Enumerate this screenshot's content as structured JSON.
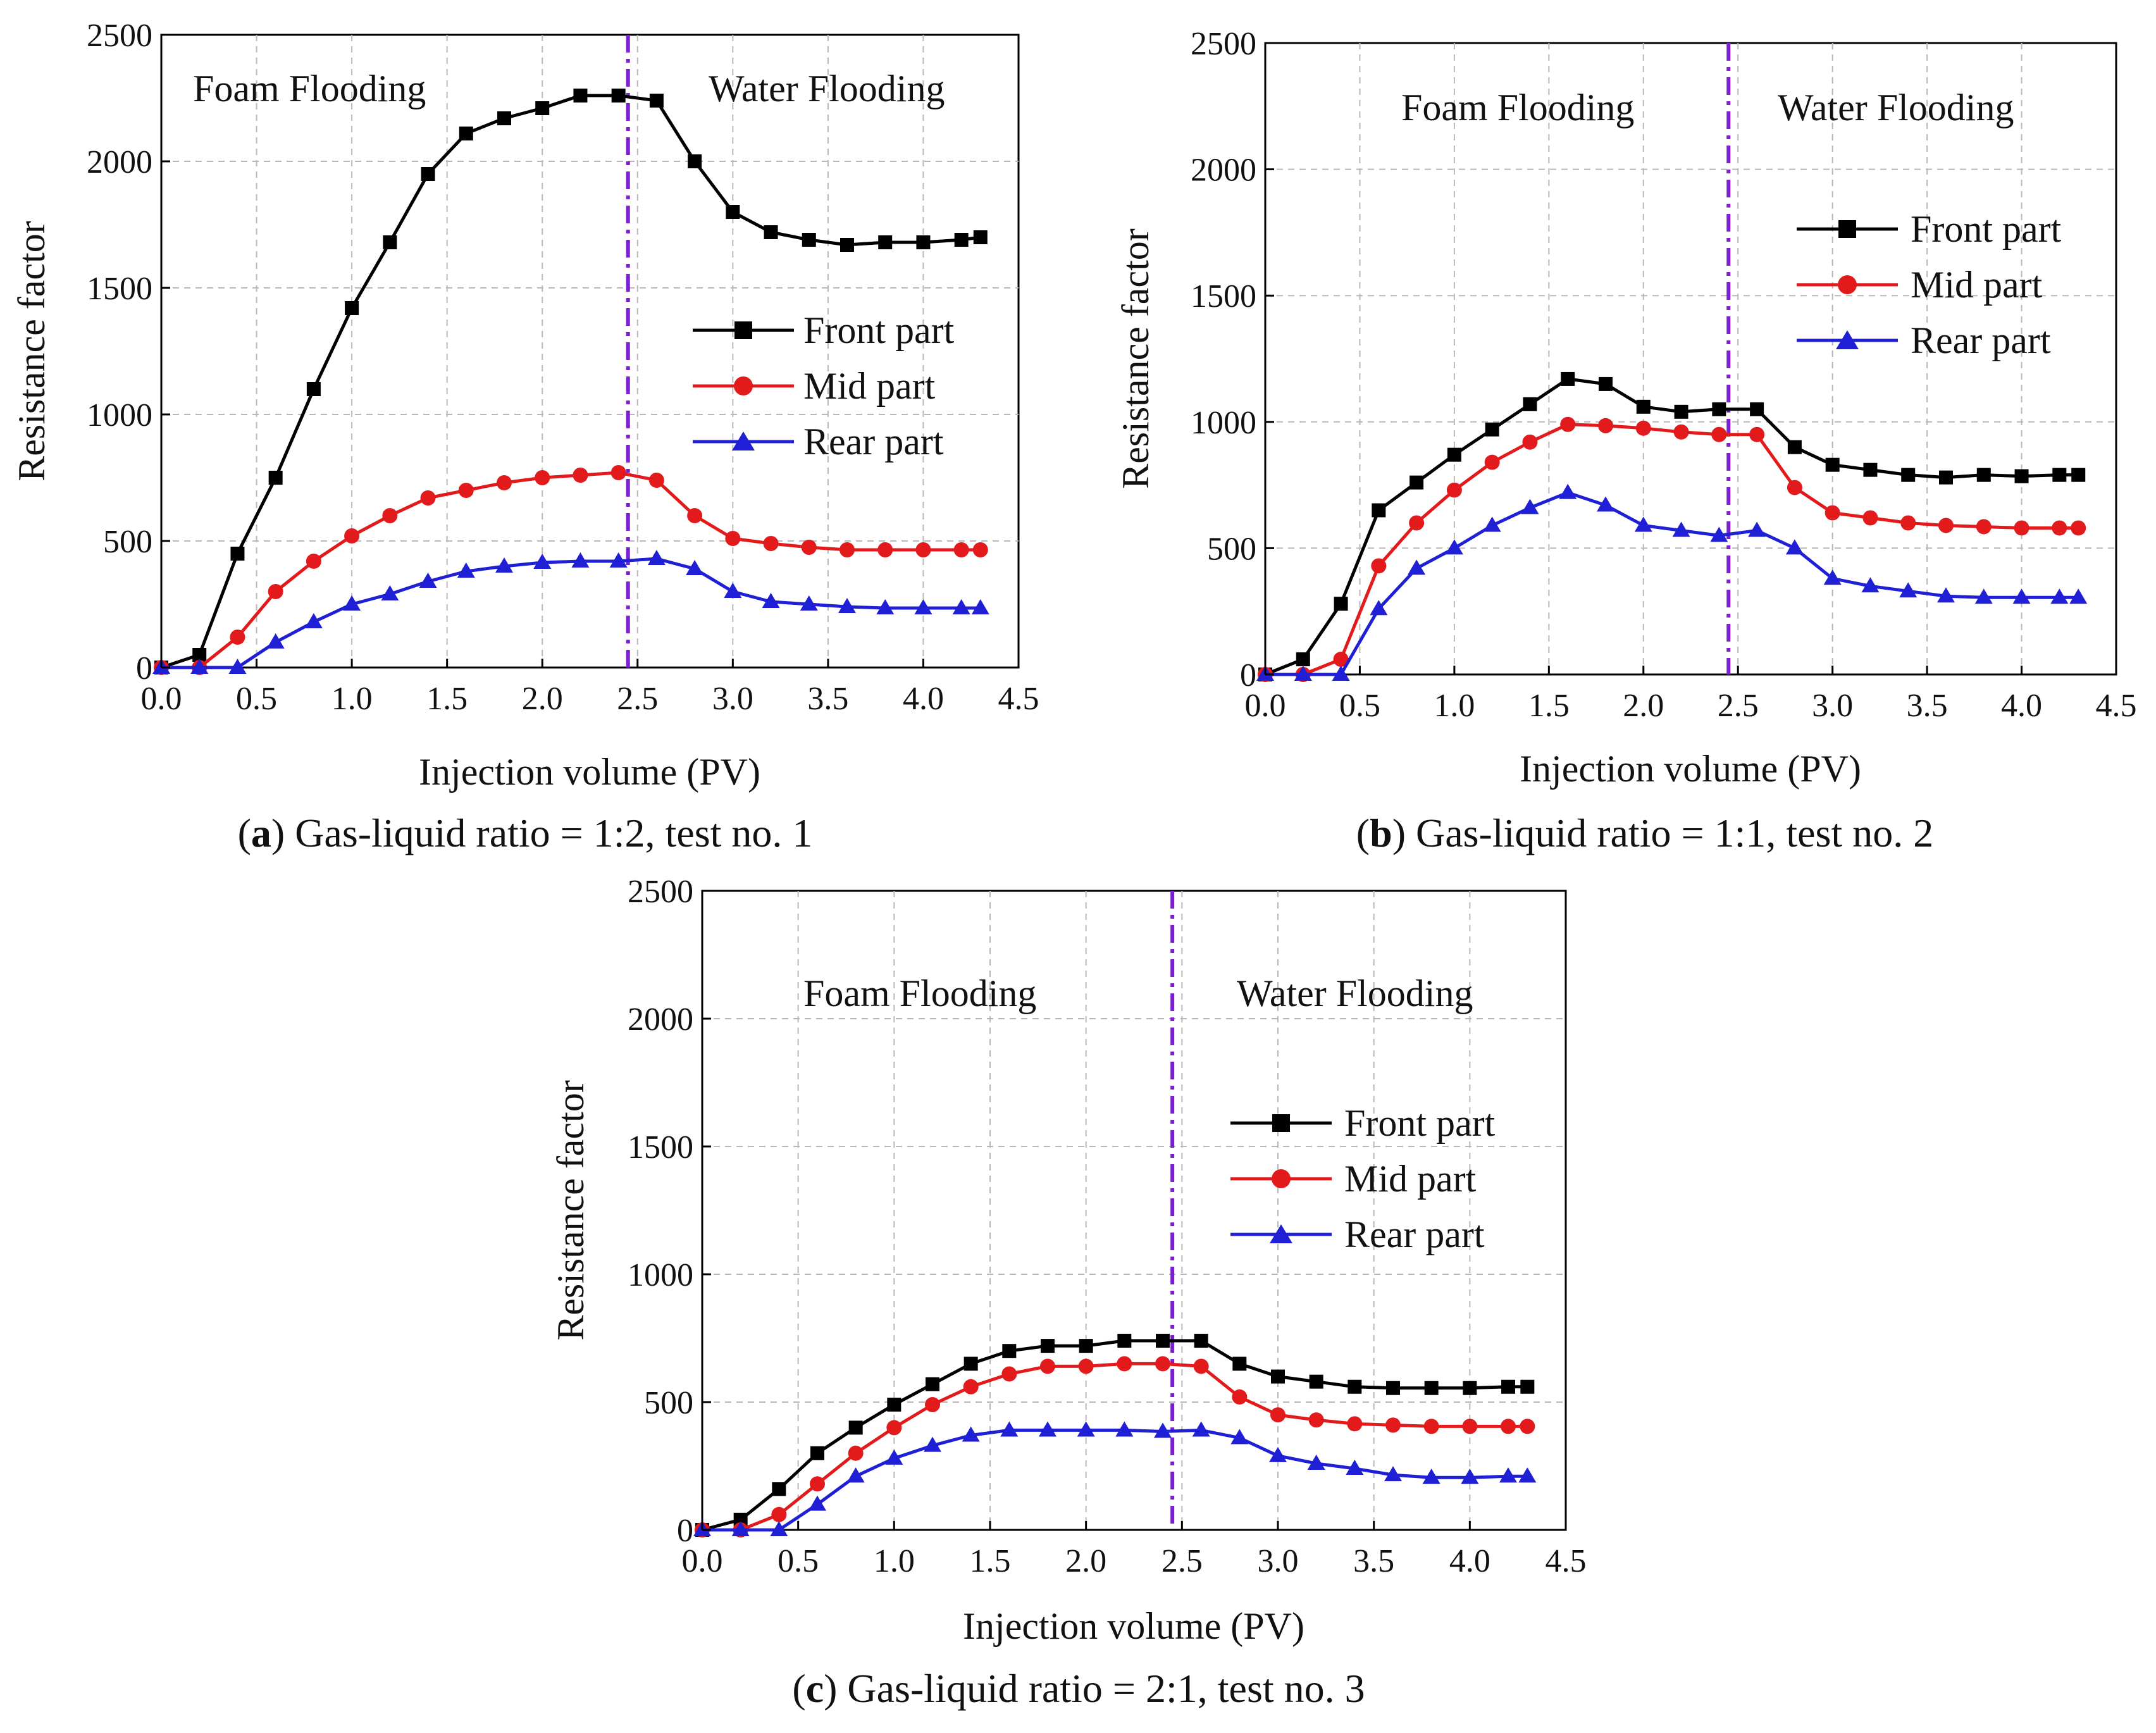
{
  "figure": {
    "captions": [
      {
        "letter": "a",
        "text": " Gas-liquid ratio = 1:2, test no. 1"
      },
      {
        "letter": "b",
        "text": " Gas-liquid ratio = 1:1, test no. 2"
      },
      {
        "letter": "c",
        "text": " Gas-liquid ratio = 2:1, test no. 3"
      }
    ]
  },
  "colors": {
    "front": "#000000",
    "mid": "#e31a1c",
    "rear": "#1f1fd6",
    "divider": "#7b1fd1",
    "grid": "#b8b8b8"
  },
  "chart_data": [
    {
      "type": "line",
      "panel": "a",
      "xlabel": "Injection volume (PV)",
      "ylabel": "Resistance factor",
      "xlim": [
        0,
        4.5
      ],
      "ylim": [
        0,
        2500
      ],
      "xticks": [
        "0.0",
        "0.5",
        "1.0",
        "1.5",
        "2.0",
        "2.5",
        "3.0",
        "3.5",
        "4.0",
        "4.5"
      ],
      "yticks": [
        "0",
        "500",
        "1000",
        "1500",
        "2000",
        "2500"
      ],
      "grid": true,
      "legend_position": "center-right",
      "divider_x": 2.45,
      "regions": [
        "Foam Flooding",
        "Water Flooding"
      ],
      "x": [
        0.0,
        0.2,
        0.4,
        0.6,
        0.8,
        1.0,
        1.2,
        1.4,
        1.6,
        1.8,
        2.0,
        2.2,
        2.4,
        2.6,
        2.8,
        3.0,
        3.2,
        3.4,
        3.6,
        3.8,
        4.0,
        4.2,
        4.3
      ],
      "series": [
        {
          "name": "Front part",
          "marker": "square",
          "values": [
            0,
            50,
            450,
            750,
            1100,
            1420,
            1680,
            1950,
            2110,
            2170,
            2210,
            2260,
            2260,
            2240,
            2000,
            1800,
            1720,
            1690,
            1670,
            1680,
            1680,
            1690,
            1700
          ]
        },
        {
          "name": "Mid part",
          "marker": "circle",
          "values": [
            0,
            0,
            120,
            300,
            420,
            520,
            600,
            670,
            700,
            730,
            750,
            760,
            770,
            740,
            600,
            510,
            490,
            475,
            465,
            465,
            465,
            465,
            465
          ]
        },
        {
          "name": "Rear part",
          "marker": "triangle",
          "values": [
            0,
            0,
            0,
            100,
            180,
            250,
            290,
            340,
            380,
            400,
            415,
            420,
            420,
            430,
            390,
            300,
            260,
            250,
            240,
            235,
            235,
            235,
            235
          ]
        }
      ]
    },
    {
      "type": "line",
      "panel": "b",
      "xlabel": "Injection volume (PV)",
      "ylabel": "Resistance factor",
      "xlim": [
        0,
        4.5
      ],
      "ylim": [
        0,
        2500
      ],
      "xticks": [
        "0.0",
        "0.5",
        "1.0",
        "1.5",
        "2.0",
        "2.5",
        "3.0",
        "3.5",
        "4.0",
        "4.5"
      ],
      "yticks": [
        "0",
        "500",
        "1000",
        "1500",
        "2000",
        "2500"
      ],
      "grid": true,
      "legend_position": "top-right",
      "divider_x": 2.45,
      "regions": [
        "Foam Flooding",
        "Water Flooding"
      ],
      "x": [
        0.0,
        0.2,
        0.4,
        0.6,
        0.8,
        1.0,
        1.2,
        1.4,
        1.6,
        1.8,
        2.0,
        2.2,
        2.4,
        2.6,
        2.8,
        3.0,
        3.2,
        3.4,
        3.6,
        3.8,
        4.0,
        4.2,
        4.3
      ],
      "series": [
        {
          "name": "Front part",
          "marker": "square",
          "values": [
            0,
            60,
            280,
            650,
            760,
            870,
            970,
            1070,
            1170,
            1150,
            1060,
            1040,
            1050,
            1050,
            900,
            830,
            810,
            790,
            780,
            790,
            785,
            790,
            790
          ]
        },
        {
          "name": "Mid part",
          "marker": "circle",
          "values": [
            0,
            0,
            60,
            430,
            600,
            730,
            840,
            920,
            990,
            985,
            975,
            960,
            950,
            950,
            740,
            640,
            620,
            600,
            590,
            585,
            580,
            580,
            580
          ]
        },
        {
          "name": "Rear part",
          "marker": "triangle",
          "values": [
            0,
            0,
            0,
            260,
            420,
            500,
            590,
            660,
            720,
            670,
            590,
            570,
            550,
            570,
            500,
            380,
            350,
            330,
            310,
            305,
            305,
            305,
            305
          ]
        }
      ]
    },
    {
      "type": "line",
      "panel": "c",
      "xlabel": "Injection volume (PV)",
      "ylabel": "Resistance factor",
      "xlim": [
        0,
        4.5
      ],
      "ylim": [
        0,
        2500
      ],
      "xticks": [
        "0.0",
        "0.5",
        "1.0",
        "1.5",
        "2.0",
        "2.5",
        "3.0",
        "3.5",
        "4.0",
        "4.5"
      ],
      "yticks": [
        "0",
        "500",
        "1000",
        "1500",
        "2000",
        "2500"
      ],
      "grid": true,
      "legend_position": "center-right",
      "divider_x": 2.45,
      "regions": [
        "Foam Flooding",
        "Water Flooding"
      ],
      "x": [
        0.0,
        0.2,
        0.4,
        0.6,
        0.8,
        1.0,
        1.2,
        1.4,
        1.6,
        1.8,
        2.0,
        2.2,
        2.4,
        2.6,
        2.8,
        3.0,
        3.2,
        3.4,
        3.6,
        3.8,
        4.0,
        4.2,
        4.3
      ],
      "series": [
        {
          "name": "Front part",
          "marker": "square",
          "values": [
            0,
            40,
            160,
            300,
            400,
            490,
            570,
            650,
            700,
            720,
            720,
            740,
            740,
            740,
            650,
            600,
            580,
            560,
            555,
            555,
            555,
            560,
            560
          ]
        },
        {
          "name": "Mid part",
          "marker": "circle",
          "values": [
            0,
            0,
            60,
            180,
            300,
            400,
            490,
            560,
            610,
            640,
            640,
            650,
            650,
            640,
            520,
            450,
            430,
            415,
            410,
            405,
            405,
            405,
            405
          ]
        },
        {
          "name": "Rear part",
          "marker": "triangle",
          "values": [
            0,
            0,
            0,
            100,
            210,
            280,
            330,
            370,
            390,
            390,
            390,
            390,
            385,
            390,
            360,
            290,
            260,
            240,
            215,
            205,
            205,
            210,
            210
          ]
        }
      ]
    }
  ]
}
